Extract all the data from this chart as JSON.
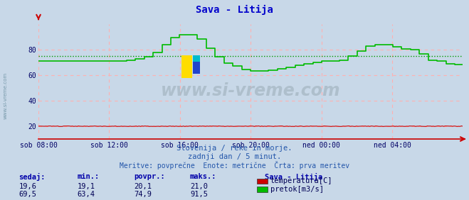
{
  "title": "Sava - Litija",
  "title_color": "#0000cc",
  "bg_color": "#c8d8e8",
  "plot_bg_color": "#c8d8e8",
  "grid_color_h": "#ffb0b0",
  "grid_color_v": "#ffb0b0",
  "ylim": [
    10,
    100
  ],
  "ytick_vals": [
    20,
    40,
    60,
    80
  ],
  "xtick_labels": [
    "sob 08:00",
    "sob 12:00",
    "sob 16:00",
    "sob 20:00",
    "ned 00:00",
    "ned 04:00"
  ],
  "avg_pretok": 74.9,
  "avg_temp": 20.1,
  "watermark": "www.si-vreme.com",
  "subtitle1": "Slovenija / reke in morje.",
  "subtitle2": "zadnji dan / 5 minut.",
  "subtitle3": "Meritve: povprečne  Enote: metrične  Črta: prva meritev",
  "legend_title": "Sava - Litija",
  "legend_items": [
    "temperatura[C]",
    "pretok[m3/s]"
  ],
  "legend_colors": [
    "#cc0000",
    "#00bb00"
  ],
  "table_headers": [
    "sedaj:",
    "min.:",
    "povpr.:",
    "maks.:"
  ],
  "table_row1": [
    "19,6",
    "19,1",
    "20,1",
    "21,0"
  ],
  "table_row2": [
    "69,5",
    "63,4",
    "74,9",
    "91,5"
  ],
  "temp_color": "#cc0000",
  "flow_color": "#00bb00",
  "avg_line_color": "#009900",
  "spine_color": "#cc0000",
  "tick_color": "#000066",
  "n_points": 288
}
